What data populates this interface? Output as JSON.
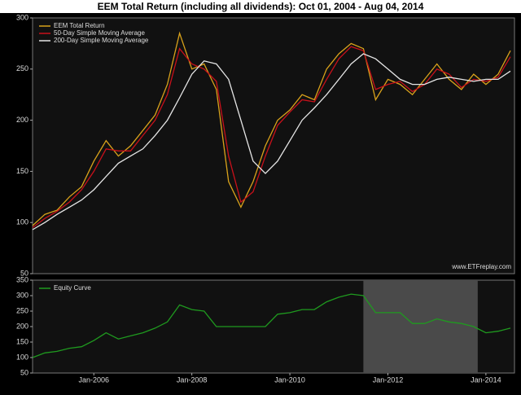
{
  "chart_data": [
    {
      "type": "line",
      "title": "EEM Total Return (including all dividends): Oct 01, 2004 - Aug 04, 2014",
      "annotation": "www.ETFreplay.com",
      "x": [
        "2004-10",
        "2005-01",
        "2005-04",
        "2005-07",
        "2005-10",
        "2006-01",
        "2006-04",
        "2006-07",
        "2006-10",
        "2007-01",
        "2007-04",
        "2007-07",
        "2007-10",
        "2008-01",
        "2008-04",
        "2008-07",
        "2008-10",
        "2009-01",
        "2009-04",
        "2009-07",
        "2009-10",
        "2010-01",
        "2010-04",
        "2010-07",
        "2010-10",
        "2011-01",
        "2011-04",
        "2011-07",
        "2011-10",
        "2012-01",
        "2012-04",
        "2012-07",
        "2012-10",
        "2013-01",
        "2013-04",
        "2013-07",
        "2013-10",
        "2014-01",
        "2014-04",
        "2014-07"
      ],
      "series": [
        {
          "name": "EEM Total Return",
          "color": "#d9a21b",
          "values": [
            97,
            108,
            112,
            125,
            135,
            160,
            180,
            165,
            175,
            190,
            205,
            235,
            285,
            250,
            255,
            230,
            140,
            115,
            140,
            175,
            200,
            210,
            225,
            220,
            250,
            265,
            275,
            270,
            220,
            240,
            235,
            225,
            240,
            255,
            240,
            230,
            245,
            235,
            245,
            268
          ]
        },
        {
          "name": "50-Day Simple Moving Average",
          "color": "#c8101a",
          "values": [
            95,
            104,
            111,
            120,
            132,
            150,
            172,
            170,
            170,
            185,
            200,
            225,
            270,
            255,
            250,
            238,
            165,
            120,
            130,
            165,
            195,
            208,
            220,
            218,
            240,
            260,
            272,
            268,
            230,
            235,
            238,
            228,
            235,
            250,
            245,
            232,
            240,
            238,
            242,
            262
          ]
        },
        {
          "name": "200-Day Simple Moving Average",
          "color": "#e6e6e6",
          "values": [
            93,
            100,
            108,
            115,
            122,
            132,
            145,
            158,
            165,
            172,
            185,
            200,
            222,
            245,
            258,
            255,
            240,
            200,
            160,
            148,
            160,
            180,
            200,
            212,
            225,
            240,
            255,
            265,
            260,
            250,
            240,
            235,
            235,
            240,
            242,
            240,
            238,
            240,
            240,
            248
          ]
        }
      ],
      "xlim": [
        "2004-10",
        "2014-08"
      ],
      "ylim": [
        50,
        300
      ],
      "yticks": [
        50,
        100,
        150,
        200,
        250,
        300
      ],
      "legend": "upper left"
    },
    {
      "type": "line",
      "x": [
        "2004-10",
        "2005-01",
        "2005-04",
        "2005-07",
        "2005-10",
        "2006-01",
        "2006-04",
        "2006-07",
        "2006-10",
        "2007-01",
        "2007-04",
        "2007-07",
        "2007-10",
        "2008-01",
        "2008-04",
        "2008-07",
        "2008-10",
        "2009-01",
        "2009-04",
        "2009-07",
        "2009-10",
        "2010-01",
        "2010-04",
        "2010-07",
        "2010-10",
        "2011-01",
        "2011-04",
        "2011-07",
        "2011-10",
        "2012-01",
        "2012-04",
        "2012-07",
        "2012-10",
        "2013-01",
        "2013-04",
        "2013-07",
        "2013-10",
        "2014-01",
        "2014-04",
        "2014-07"
      ],
      "series": [
        {
          "name": "Equity Curve",
          "color": "#1f9a1f",
          "values": [
            100,
            115,
            120,
            130,
            135,
            155,
            180,
            160,
            170,
            180,
            195,
            215,
            270,
            255,
            250,
            200,
            200,
            200,
            200,
            200,
            240,
            245,
            255,
            255,
            280,
            295,
            305,
            300,
            245,
            245,
            245,
            210,
            210,
            225,
            215,
            210,
            200,
            180,
            185,
            195
          ]
        }
      ],
      "shaded_range": [
        "2011-07",
        "2013-11"
      ],
      "xlim": [
        "2004-10",
        "2014-08"
      ],
      "ylim": [
        50,
        350
      ],
      "yticks": [
        50,
        100,
        150,
        200,
        250,
        300,
        350
      ],
      "xticks": [
        {
          "value": "2006-01",
          "label": "Jan-2006"
        },
        {
          "value": "2008-01",
          "label": "Jan-2008"
        },
        {
          "value": "2010-01",
          "label": "Jan-2010"
        },
        {
          "value": "2012-01",
          "label": "Jan-2012"
        },
        {
          "value": "2014-01",
          "label": "Jan-2014"
        }
      ],
      "legend": "upper left"
    }
  ]
}
